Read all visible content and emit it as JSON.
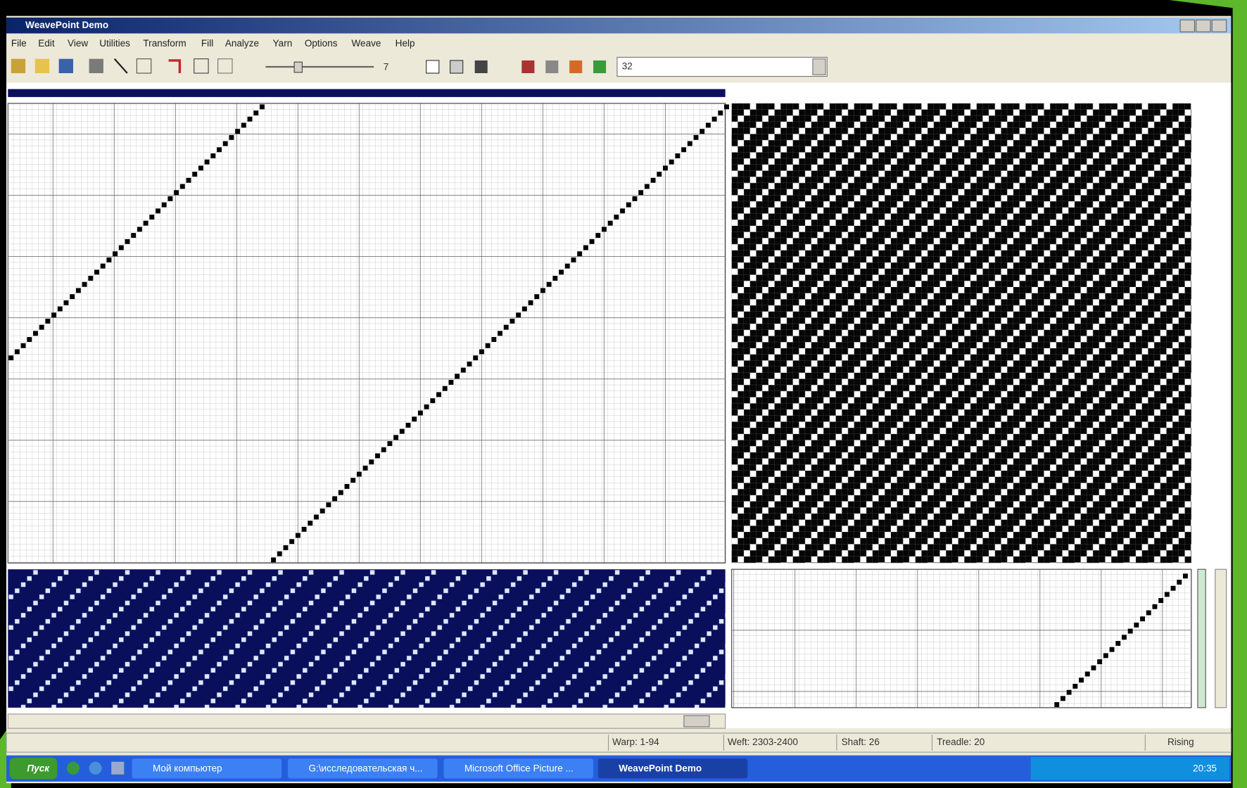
{
  "window": {
    "title": "WeavePoint Demo"
  },
  "menu": [
    "File",
    "Edit",
    "View",
    "Utilities",
    "Transform",
    "Fill",
    "Analyze",
    "Yarn",
    "Options",
    "Weave",
    "Help"
  ],
  "toolbar": {
    "slider_value": "7",
    "combo": "32"
  },
  "status": {
    "warp": "Warp: 1-94",
    "weft": "Weft: 2303-2400",
    "shaft": "Shaft: 26",
    "treadle": "Treadle: 20",
    "mode": "Rising"
  },
  "taskbar": {
    "start": "Пуск",
    "items": [
      "Мой компьютер",
      "G:\\исследовательская ч...",
      "Microsoft Office Picture ...",
      "WeavePoint Demo"
    ],
    "clock": "20:35"
  }
}
